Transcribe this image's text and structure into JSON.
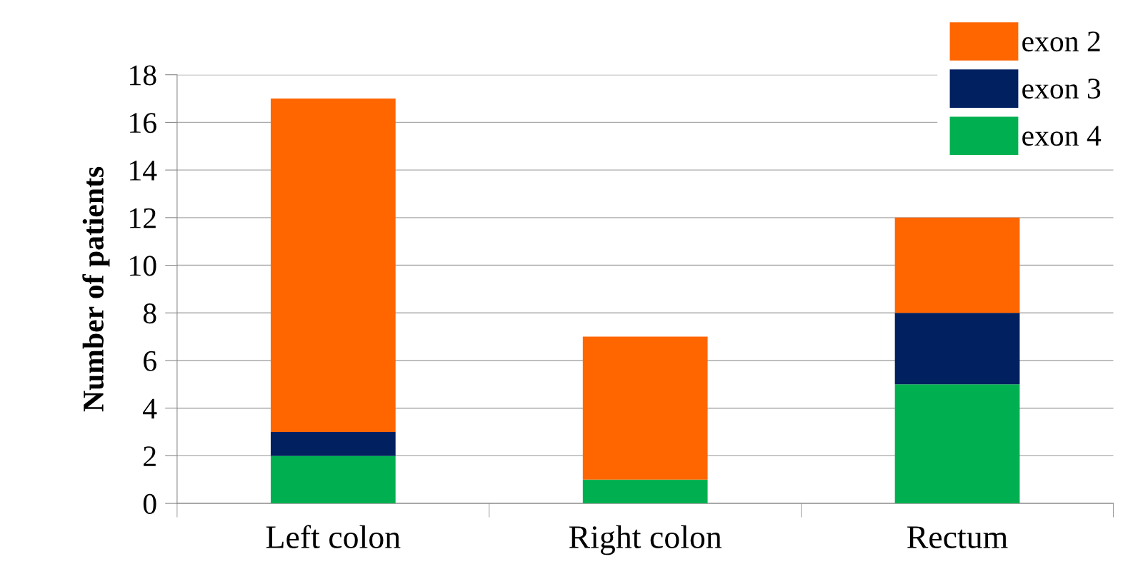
{
  "chart_data": {
    "type": "bar",
    "stacked": true,
    "ylabel": "Number of patients",
    "categories": [
      "Left colon",
      "Right colon",
      "Rectum"
    ],
    "series": [
      {
        "name": "exon 4",
        "color": "#00b050",
        "values": [
          2,
          1,
          5
        ]
      },
      {
        "name": "exon 3",
        "color": "#002060",
        "values": [
          1,
          0,
          3
        ]
      },
      {
        "name": "exon 2",
        "color": "#ff6600",
        "values": [
          14,
          6,
          4
        ]
      }
    ],
    "ylim": [
      0,
      18
    ],
    "yticks": [
      0,
      2,
      4,
      6,
      8,
      10,
      12,
      14,
      16,
      18
    ],
    "grid": "y",
    "legend": "top right"
  }
}
